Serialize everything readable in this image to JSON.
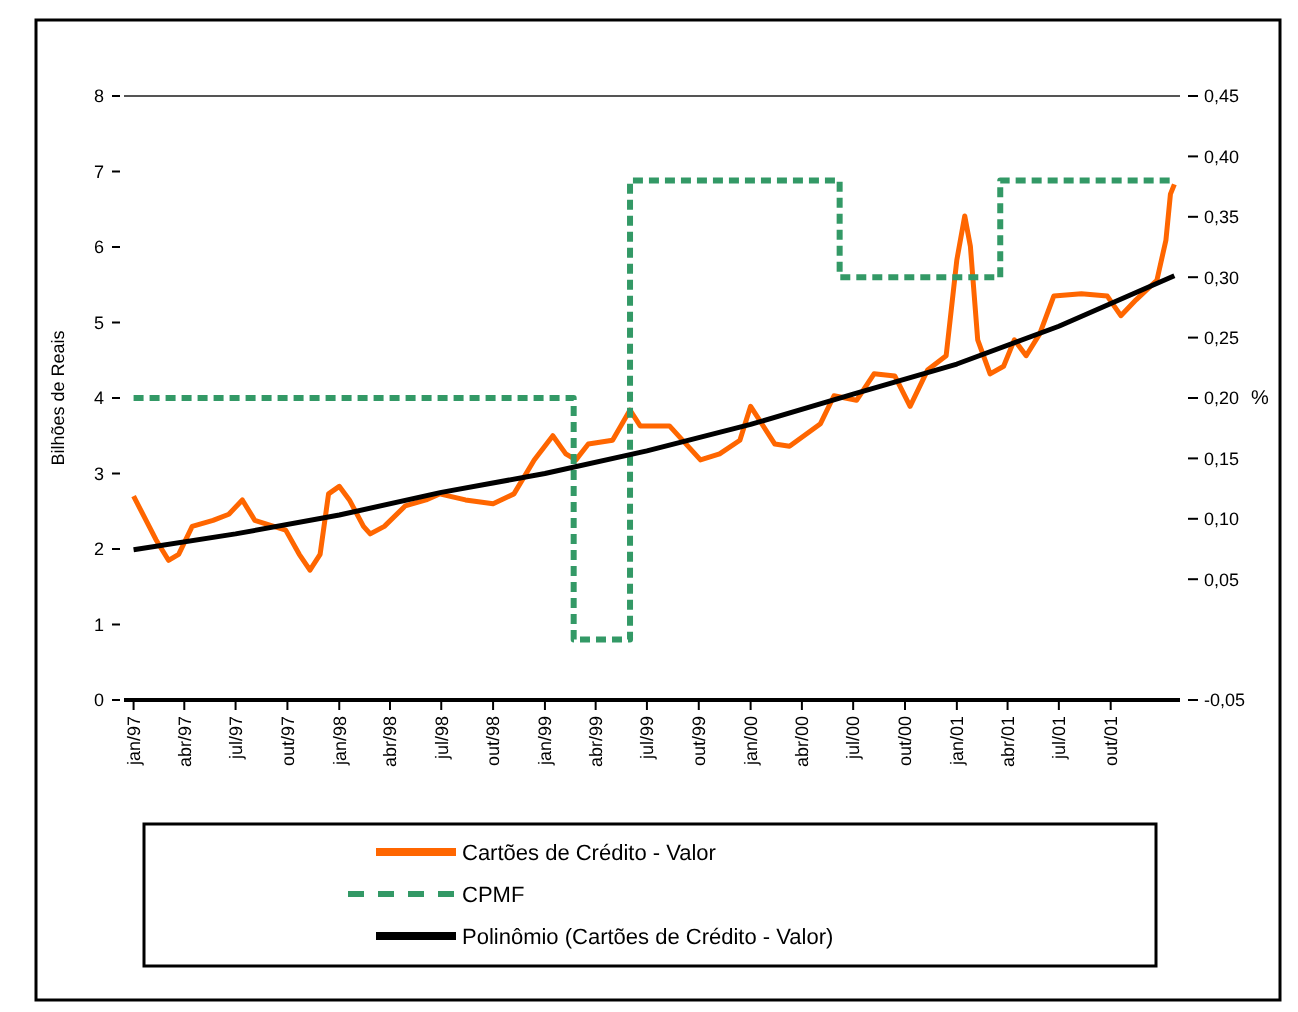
{
  "chart_data": {
    "type": "line",
    "ylabel": "Bilhões de Reais",
    "y2label": "%",
    "xlim": [
      "1996-12-15",
      "2002-02-01"
    ],
    "xticks": [
      {
        "value": "1997-01-01",
        "label": "jan/97"
      },
      {
        "value": "1997-04-01",
        "label": "abr/97"
      },
      {
        "value": "1997-07-01",
        "label": "jul/97"
      },
      {
        "value": "1997-10-01",
        "label": "out/97"
      },
      {
        "value": "1998-01-01",
        "label": "jan/98"
      },
      {
        "value": "1998-04-01",
        "label": "abr/98"
      },
      {
        "value": "1998-07-01",
        "label": "jul/98"
      },
      {
        "value": "1998-10-01",
        "label": "out/98"
      },
      {
        "value": "1999-01-01",
        "label": "jan/99"
      },
      {
        "value": "1999-04-01",
        "label": "abr/99"
      },
      {
        "value": "1999-07-01",
        "label": "jul/99"
      },
      {
        "value": "1999-10-01",
        "label": "out/99"
      },
      {
        "value": "2000-01-01",
        "label": "jan/00"
      },
      {
        "value": "2000-04-01",
        "label": "abr/00"
      },
      {
        "value": "2000-07-01",
        "label": "jul/00"
      },
      {
        "value": "2000-10-01",
        "label": "out/00"
      },
      {
        "value": "2001-01-01",
        "label": "jan/01"
      },
      {
        "value": "2001-04-01",
        "label": "abr/01"
      },
      {
        "value": "2001-07-01",
        "label": "jul/01"
      },
      {
        "value": "2001-10-01",
        "label": "out/01"
      }
    ],
    "ylim": [
      0,
      8
    ],
    "yticks": [
      0,
      1,
      2,
      3,
      4,
      5,
      6,
      7,
      8
    ],
    "y2lim": [
      -0.05,
      0.45
    ],
    "y2ticks": [
      {
        "value": -0.05,
        "label": "-0,05"
      },
      {
        "value": 0.05,
        "label": "0,05"
      },
      {
        "value": 0.1,
        "label": "0,10"
      },
      {
        "value": 0.15,
        "label": "0,15"
      },
      {
        "value": 0.2,
        "label": "0,20"
      },
      {
        "value": 0.25,
        "label": "0,25"
      },
      {
        "value": 0.3,
        "label": "0,30"
      },
      {
        "value": 0.35,
        "label": "0,35"
      },
      {
        "value": 0.4,
        "label": "0,40"
      },
      {
        "value": 0.45,
        "label": "0,45"
      }
    ],
    "legend": "bottom",
    "grid": false,
    "marker": "none",
    "series": [
      {
        "name": "Cartões de Crédito - Valor",
        "color": "#ff6600",
        "line_style": "solid",
        "x": [
          "1997-01-01",
          "1997-02-10",
          "1997-03-04",
          "1997-03-22",
          "1997-04-15",
          "1997-05-22",
          "1997-06-19",
          "1997-07-13",
          "1997-08-04",
          "1997-09-28",
          "1997-10-22",
          "1997-11-10",
          "1997-11-28",
          "1997-12-13",
          "1998-01-01",
          "1998-01-19",
          "1998-02-13",
          "1998-02-25",
          "1998-03-22",
          "1998-04-28",
          "1998-06-04",
          "1998-06-28",
          "1998-08-13",
          "1998-10-01",
          "1998-11-07",
          "1998-12-13",
          "1999-01-15",
          "1999-02-07",
          "1999-02-25",
          "1999-03-19",
          "1999-05-01",
          "1999-06-01",
          "1999-06-19",
          "1999-08-10",
          "1999-10-04",
          "1999-11-07",
          "1999-12-13",
          "2000-01-01",
          "2000-02-13",
          "2000-03-10",
          "2000-05-04",
          "2000-05-28",
          "2000-07-07",
          "2000-08-07",
          "2000-09-13",
          "2000-10-10",
          "2000-11-10",
          "2000-12-13",
          "2001-01-01",
          "2001-01-15",
          "2001-01-25",
          "2001-02-07",
          "2001-03-01",
          "2001-03-25",
          "2001-04-13",
          "2001-05-04",
          "2001-05-28",
          "2001-06-22",
          "2001-08-10",
          "2001-09-25",
          "2001-10-19",
          "2001-11-15",
          "2001-12-22",
          "2002-01-07",
          "2002-01-15",
          "2002-01-22"
        ],
        "values": [
          2.7,
          2.12,
          1.85,
          1.93,
          2.3,
          2.38,
          2.46,
          2.65,
          2.38,
          2.25,
          1.93,
          1.72,
          1.93,
          2.73,
          2.83,
          2.65,
          2.3,
          2.2,
          2.3,
          2.57,
          2.65,
          2.73,
          2.65,
          2.6,
          2.73,
          3.18,
          3.5,
          3.26,
          3.18,
          3.39,
          3.44,
          3.84,
          3.63,
          3.63,
          3.18,
          3.26,
          3.44,
          3.89,
          3.39,
          3.36,
          3.66,
          4.03,
          3.97,
          4.32,
          4.29,
          3.89,
          4.37,
          4.56,
          5.83,
          6.41,
          6.01,
          4.77,
          4.32,
          4.42,
          4.77,
          4.56,
          4.85,
          5.35,
          5.38,
          5.35,
          5.09,
          5.3,
          5.56,
          6.09,
          6.7,
          6.83
        ]
      },
      {
        "name": "CPMF",
        "type": "step",
        "axis": "y2",
        "color": "#339966",
        "line_style": "dashed",
        "x": [
          "1997-01-01",
          "1999-02-21",
          "1999-06-01",
          "2000-06-07",
          "2001-03-19",
          "2002-01-22"
        ],
        "values": [
          0.2,
          0,
          0.38,
          0.3,
          0.38,
          0.38
        ]
      },
      {
        "name": "Polinômio (Cartões de Crédito - Valor)",
        "color": "#000000",
        "line_style": "solid",
        "x": [
          "1997-01-01",
          "1997-07-01",
          "1998-01-01",
          "1998-07-01",
          "1999-01-01",
          "1999-07-01",
          "2000-01-01",
          "2000-07-01",
          "2001-01-01",
          "2001-07-01",
          "2002-01-22"
        ],
        "values": [
          1.99,
          2.2,
          2.45,
          2.75,
          3.0,
          3.3,
          3.65,
          4.05,
          4.45,
          4.95,
          5.62
        ]
      }
    ]
  }
}
